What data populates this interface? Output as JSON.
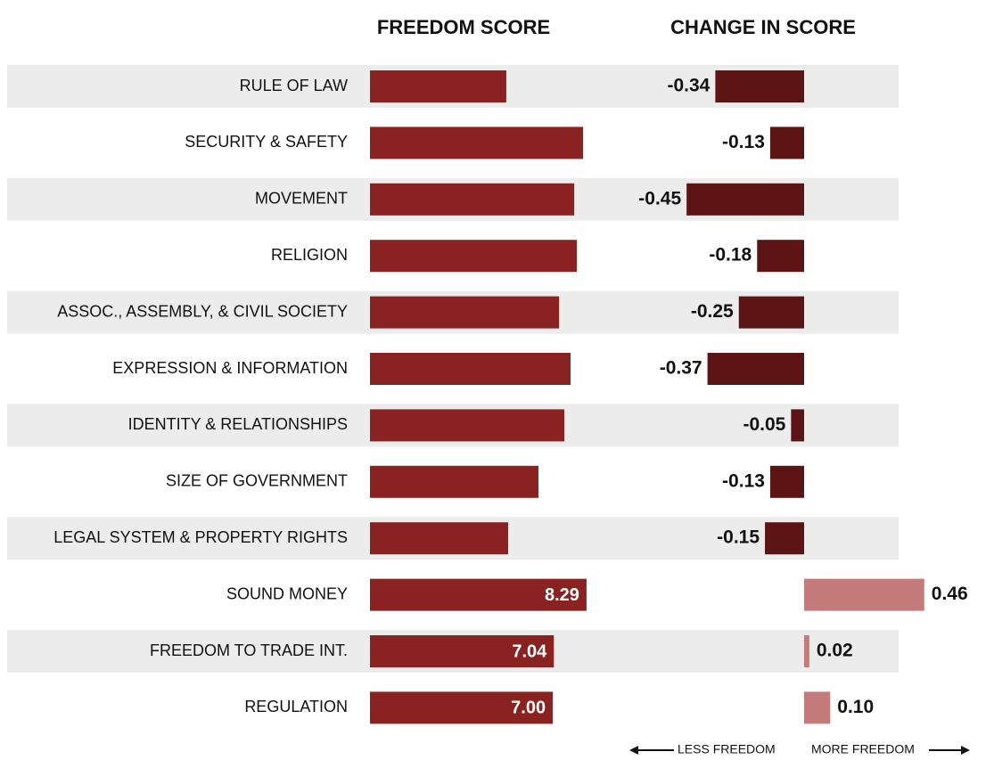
{
  "chart_data": [
    {
      "type": "bar",
      "title": "FREEDOM SCORE",
      "categories": [
        "RULE OF LAW",
        "SECURITY & SAFETY",
        "MOVEMENT",
        "RELIGION",
        "ASSOC., ASSEMBLY, & CIVIL SOCIETY",
        "EXPRESSION & INFORMATION",
        "IDENTITY & RELATIONSHIPS",
        "SIZE OF GOVERNMENT",
        "LEGAL SYSTEM & PROPERTY RIGHTS",
        "SOUND MONEY",
        "FREEDOM TO TRADE INT.",
        "REGULATION"
      ],
      "values": [
        5.22,
        8.16,
        7.82,
        7.92,
        7.24,
        7.68,
        7.44,
        6.45,
        5.29,
        8.29,
        7.04,
        7.0
      ],
      "value_labels": [
        null,
        null,
        null,
        null,
        null,
        null,
        null,
        null,
        null,
        "8.29",
        "7.04",
        "7.00"
      ],
      "color": "#8b2222"
    },
    {
      "type": "bar",
      "title": "CHANGE IN SCORE",
      "values": [
        -0.34,
        -0.13,
        -0.45,
        -0.18,
        -0.25,
        -0.37,
        -0.05,
        -0.13,
        -0.15,
        0.46,
        0.02,
        0.1
      ],
      "value_labels": [
        "-0.34",
        "-0.13",
        "-0.45",
        "-0.18",
        "-0.25",
        "-0.37",
        "-0.05",
        "-0.13",
        "-0.15",
        "0.46",
        "0.02",
        "0.10"
      ],
      "negative_color": "#5c1414",
      "positive_color": "#c47b7b",
      "annotations": [
        "LESS FREEDOM",
        "MORE FREEDOM"
      ]
    }
  ]
}
